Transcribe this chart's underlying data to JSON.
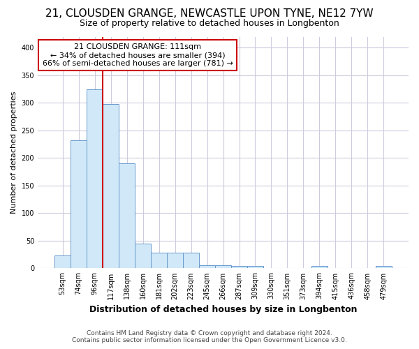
{
  "title_line1": "21, CLOUSDEN GRANGE, NEWCASTLE UPON TYNE, NE12 7YW",
  "title_line2": "Size of property relative to detached houses in Longbenton",
  "xlabel": "Distribution of detached houses by size in Longbenton",
  "ylabel": "Number of detached properties",
  "categories": [
    "53sqm",
    "74sqm",
    "96sqm",
    "117sqm",
    "138sqm",
    "160sqm",
    "181sqm",
    "202sqm",
    "223sqm",
    "245sqm",
    "266sqm",
    "287sqm",
    "309sqm",
    "330sqm",
    "351sqm",
    "373sqm",
    "394sqm",
    "415sqm",
    "436sqm",
    "458sqm",
    "479sqm"
  ],
  "values": [
    23,
    232,
    325,
    298,
    190,
    45,
    28,
    29,
    29,
    5,
    5,
    4,
    4,
    0,
    0,
    0,
    4,
    0,
    0,
    0,
    4
  ],
  "bar_color": "#d0e8f8",
  "bar_edge_color": "#6699cc",
  "grid_color": "#ccccdd",
  "property_line_color": "#cc0000",
  "annotation_text_line1": "21 CLOUSDEN GRANGE: 111sqm",
  "annotation_text_line2": "← 34% of detached houses are smaller (394)",
  "annotation_text_line3": "66% of semi-detached houses are larger (781) →",
  "annotation_box_facecolor": "#ffffff",
  "annotation_box_edgecolor": "#cc0000",
  "footer_line1": "Contains HM Land Registry data © Crown copyright and database right 2024.",
  "footer_line2": "Contains public sector information licensed under the Open Government Licence v3.0.",
  "ylim": [
    0,
    420
  ],
  "yticks": [
    0,
    50,
    100,
    150,
    200,
    250,
    300,
    350,
    400
  ],
  "background_color": "#ffffff",
  "title1_fontsize": 11,
  "title2_fontsize": 9,
  "xlabel_fontsize": 9,
  "ylabel_fontsize": 8,
  "tick_fontsize": 7,
  "annot_fontsize": 8,
  "footer_fontsize": 6.5
}
